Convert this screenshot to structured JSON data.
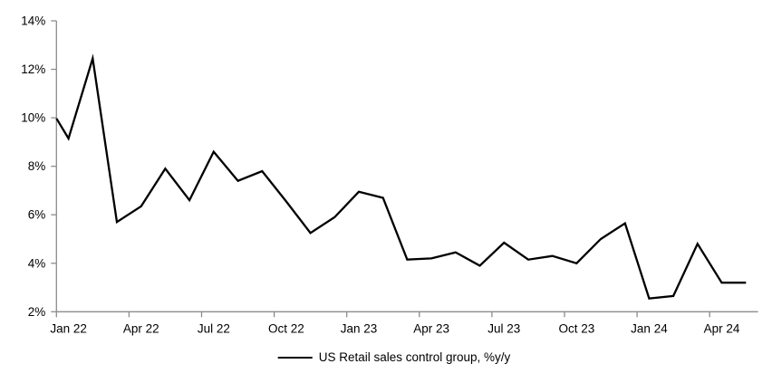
{
  "chart_data": {
    "type": "line",
    "title": "",
    "xlabel": "",
    "ylabel": "",
    "x": [
      "Dec 21",
      "Jan 22",
      "Feb 22",
      "Mar 22",
      "Apr 22",
      "May 22",
      "Jun 22",
      "Jul 22",
      "Aug 22",
      "Sep 22",
      "Oct 22",
      "Nov 22",
      "Dec 22",
      "Jan 23",
      "Feb 23",
      "Mar 23",
      "Apr 23",
      "May 23",
      "Jun 23",
      "Jul 23",
      "Aug 23",
      "Sep 23",
      "Oct 23",
      "Nov 23",
      "Dec 23",
      "Jan 24",
      "Feb 24",
      "Mar 24",
      "Apr 24",
      "May 24"
    ],
    "series": [
      {
        "name": "US Retail sales control group, %y/y",
        "color": "#000000",
        "values": [
          10.8,
          9.15,
          12.45,
          5.7,
          6.35,
          7.9,
          6.6,
          8.6,
          7.4,
          7.8,
          6.55,
          5.25,
          5.9,
          6.95,
          6.7,
          4.15,
          4.2,
          4.45,
          3.9,
          4.85,
          4.15,
          4.3,
          4.0,
          5.0,
          5.65,
          2.55,
          2.65,
          4.8,
          3.2,
          3.2
        ]
      }
    ],
    "ylim": [
      2,
      14
    ],
    "y_tick_values": [
      2,
      4,
      6,
      8,
      10,
      12,
      14
    ],
    "y_tick_labels": [
      "2%",
      "4%",
      "6%",
      "8%",
      "10%",
      "12%",
      "14%"
    ],
    "x_tick_labels": [
      "Jan 22",
      "Apr 22",
      "Jul 22",
      "Oct 22",
      "Jan 23",
      "Apr 23",
      "Jul 23",
      "Oct 23",
      "Jan 24",
      "Apr 24"
    ],
    "x_tick_interval_months": 3,
    "grid": false,
    "legend_position": "bottom-center",
    "first_point_clipped_at_axis": true,
    "colors": {
      "line": "#000000",
      "axis": "#8c8c8c",
      "tick_text": "#000000",
      "background": "#ffffff"
    }
  },
  "legend": {
    "label": "US Retail sales control group, %y/y"
  }
}
